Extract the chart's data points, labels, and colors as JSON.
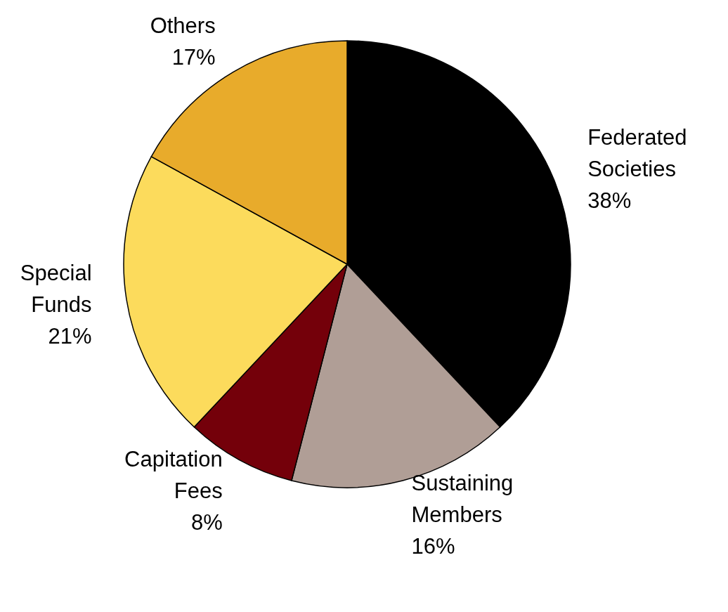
{
  "chart_data": {
    "type": "pie",
    "categories": [
      "Federated Societies",
      "Sustaining Members",
      "Capitation Fees",
      "Special Funds",
      "Others"
    ],
    "values": [
      38,
      16,
      8,
      21,
      17
    ],
    "value_labels": [
      "38%",
      "16%",
      "8%",
      "21%",
      "17%"
    ],
    "colors": [
      "#000000",
      "#b09e96",
      "#74000a",
      "#fcdb5c",
      "#e8ab2b"
    ],
    "legend": false
  }
}
